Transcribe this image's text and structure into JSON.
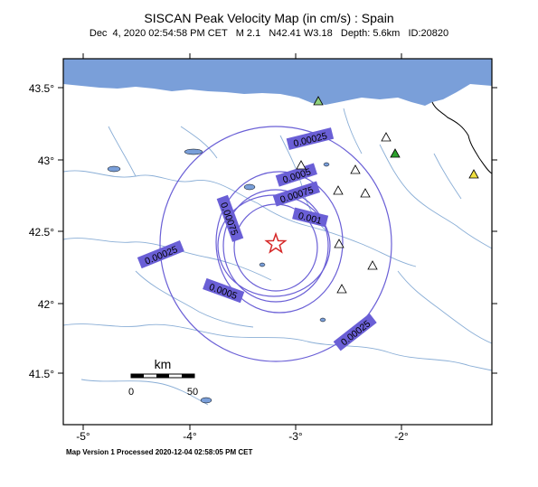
{
  "title": "SISCAN Peak Velocity Map (in cm/s) : Spain",
  "event_line": "Dec  4, 2020 02:54:58 PM CET   M 2.1   N42.41 W3.18   Depth: 5.6km   ID:20820",
  "footer": "Map Version 1 Processed 2020-12-04 02:58:05 PM CET",
  "axes": {
    "x_ticks": [
      "-5°",
      "-4°",
      "-3°",
      "-2°"
    ],
    "y_ticks": [
      "43.5°",
      "43°",
      "42.5°",
      "42°",
      "41.5°"
    ]
  },
  "scale_bar": {
    "unit": "km",
    "start": "0",
    "end": "50"
  },
  "contour_labels": [
    "0.00025",
    "0.0005",
    "0.00075",
    "0.001",
    "0.00075",
    "0.00025",
    "0.0005",
    "0.00025"
  ],
  "colors": {
    "sea": "#7a9fd9",
    "contour": "#6a5fd6",
    "contour_label_bg": "#6a5fd6",
    "rivers": "#8aaed6",
    "epicenter": "#d62828",
    "station_green": "#2ca02c",
    "station_lightgreen": "#8fd17a",
    "station_yellow": "#f0e040"
  },
  "symbols": {
    "epicenter": "star-icon",
    "station": "triangle-icon"
  }
}
